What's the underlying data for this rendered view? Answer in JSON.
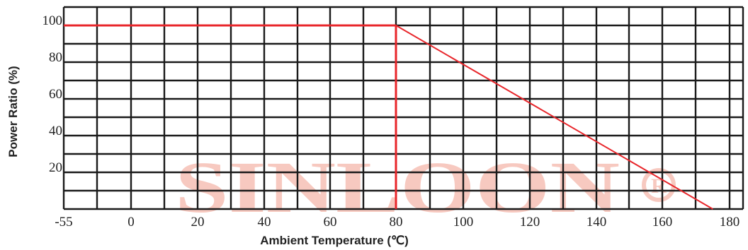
{
  "chart_data": {
    "type": "line",
    "title": "",
    "xlabel": "Ambient Temperature (℃)",
    "ylabel": "Power Ratio (%)",
    "x_ticks": [
      -55,
      0,
      20,
      40,
      60,
      80,
      100,
      120,
      140,
      160,
      180
    ],
    "y_ticks": [
      20,
      40,
      60,
      80,
      100
    ],
    "xlim": [
      -55,
      180
    ],
    "ylim": [
      0,
      100
    ],
    "grid": true,
    "series": [
      {
        "points": [
          [
            -55,
            100
          ],
          [
            80,
            100
          ],
          [
            175,
            0
          ]
        ],
        "color": "#e8262b"
      }
    ],
    "reference_lines": [
      {
        "orientation": "vertical",
        "x": 80,
        "from": 0,
        "to": 100,
        "color": "#e8262b"
      }
    ]
  },
  "watermark": {
    "text": "SINLOON",
    "mark": "R",
    "color": "#f7c9c0"
  }
}
